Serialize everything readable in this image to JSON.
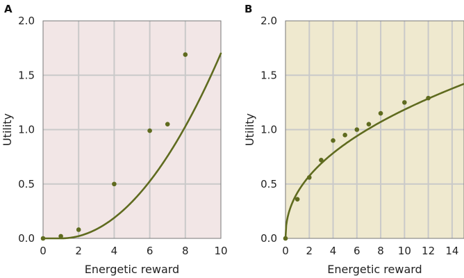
{
  "chart_data": [
    {
      "panel": "A",
      "type": "scatter",
      "xlabel": "Energetic reward",
      "ylabel": "Utility",
      "xlim": [
        0,
        10
      ],
      "ylim": [
        0,
        2.0
      ],
      "xticks": [
        "0",
        "2",
        "4",
        "6",
        "8",
        "10"
      ],
      "yticks": [
        "0.0",
        "0.5",
        "1.0",
        "1.5",
        "2.0"
      ],
      "grid": true,
      "points": [
        {
          "x": 0,
          "y": 0.0
        },
        {
          "x": 1,
          "y": 0.02
        },
        {
          "x": 2,
          "y": 0.08
        },
        {
          "x": 4,
          "y": 0.5
        },
        {
          "x": 6,
          "y": 0.99
        },
        {
          "x": 7,
          "y": 1.05
        },
        {
          "x": 8,
          "y": 1.69
        }
      ],
      "fit_curve": {
        "type": "power",
        "coefficient": 0.021,
        "exponent": 2,
        "offset": 1
      }
    },
    {
      "panel": "B",
      "type": "scatter",
      "xlabel": "Energetic reward",
      "ylabel": "Utility",
      "xlim": [
        0,
        15
      ],
      "ylim": [
        0,
        2.0
      ],
      "xticks": [
        "0",
        "2",
        "4",
        "6",
        "8",
        "10",
        "12",
        "14"
      ],
      "yticks": [
        "0.0",
        "0.5",
        "1.0",
        "1.5",
        "2.0"
      ],
      "grid": true,
      "points": [
        {
          "x": 0,
          "y": 0.0
        },
        {
          "x": 1,
          "y": 0.36
        },
        {
          "x": 2,
          "y": 0.56
        },
        {
          "x": 3,
          "y": 0.72
        },
        {
          "x": 4,
          "y": 0.9
        },
        {
          "x": 5,
          "y": 0.95
        },
        {
          "x": 6,
          "y": 1.0
        },
        {
          "x": 7,
          "y": 1.05
        },
        {
          "x": 8,
          "y": 1.15
        },
        {
          "x": 10,
          "y": 1.25
        },
        {
          "x": 12,
          "y": 1.29
        }
      ],
      "fit_curve": {
        "type": "power",
        "coefficient": 0.42,
        "exponent": 0.45,
        "offset": 0
      }
    }
  ],
  "colors": {
    "curve": "#5f6b1f",
    "points": "#5f6b1f",
    "panel_a_bg": "#f2e6e6",
    "panel_b_bg": "#efe9cf",
    "grid": "#c9c9c9",
    "axis": "#777777"
  }
}
